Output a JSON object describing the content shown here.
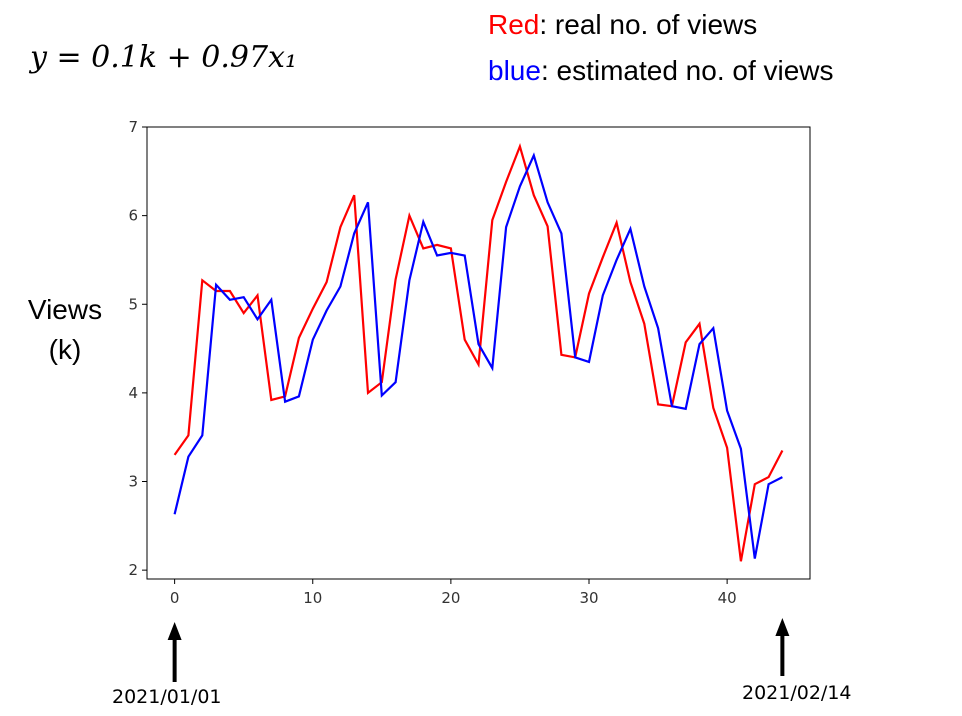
{
  "formula_text": "y = 0.1k + 0.97x₁",
  "legend": {
    "red_word": "Red",
    "red_text": ": real no. of views",
    "blue_word": "blue",
    "blue_text": ":  estimated no. of views",
    "red_color": "#ff0000",
    "blue_color": "#0000ff"
  },
  "ylabel_line1": "Views",
  "ylabel_line2": "(k)",
  "date_start": "2021/01/01",
  "date_end": "2021/02/14",
  "chart_data": {
    "type": "line",
    "xlim": [
      -2,
      46
    ],
    "ylim": [
      1.9,
      7.0
    ],
    "xticks": [
      0,
      10,
      20,
      30,
      40
    ],
    "yticks": [
      2,
      3,
      4,
      5,
      6,
      7
    ],
    "grid": false,
    "series": [
      {
        "color": "#ff0000",
        "x": [
          0,
          1,
          2,
          3,
          4,
          5,
          6,
          7,
          8,
          9,
          10,
          11,
          12,
          13,
          14,
          15,
          16,
          17,
          18,
          19,
          20,
          21,
          22,
          23,
          24,
          25,
          26,
          27,
          28,
          29,
          30,
          31,
          32,
          33,
          34,
          35,
          36,
          37,
          38,
          39,
          40,
          41,
          42,
          43,
          44
        ],
        "values": [
          3.3,
          3.52,
          5.27,
          5.15,
          5.15,
          4.9,
          5.1,
          3.92,
          3.96,
          4.62,
          4.95,
          5.25,
          5.87,
          6.23,
          4.0,
          4.12,
          5.28,
          6.0,
          5.63,
          5.67,
          5.63,
          4.6,
          4.32,
          5.95,
          6.38,
          6.78,
          6.23,
          5.88,
          4.43,
          4.4,
          5.12,
          5.53,
          5.92,
          5.25,
          4.78,
          3.87,
          3.85,
          4.57,
          4.78,
          3.83,
          3.38,
          2.1,
          2.97,
          3.05,
          3.35
        ]
      },
      {
        "color": "#0000ff",
        "x": [
          0,
          1,
          2,
          3,
          4,
          5,
          6,
          7,
          8,
          9,
          10,
          11,
          12,
          13,
          14,
          15,
          16,
          17,
          18,
          19,
          20,
          21,
          22,
          23,
          24,
          25,
          26,
          27,
          28,
          29,
          30,
          31,
          32,
          33,
          34,
          35,
          36,
          37,
          38,
          39,
          40,
          41,
          42,
          43,
          44
        ],
        "values": [
          2.63,
          3.28,
          3.52,
          5.22,
          5.05,
          5.08,
          4.83,
          5.05,
          3.9,
          3.96,
          4.6,
          4.93,
          5.2,
          5.8,
          6.15,
          3.97,
          4.12,
          5.27,
          5.93,
          5.55,
          5.58,
          5.55,
          4.55,
          4.28,
          5.87,
          6.33,
          6.68,
          6.15,
          5.8,
          4.4,
          4.35,
          5.1,
          5.5,
          5.85,
          5.2,
          4.73,
          3.85,
          3.82,
          4.55,
          4.73,
          3.8,
          3.37,
          2.13,
          2.97,
          3.05
        ]
      }
    ]
  }
}
